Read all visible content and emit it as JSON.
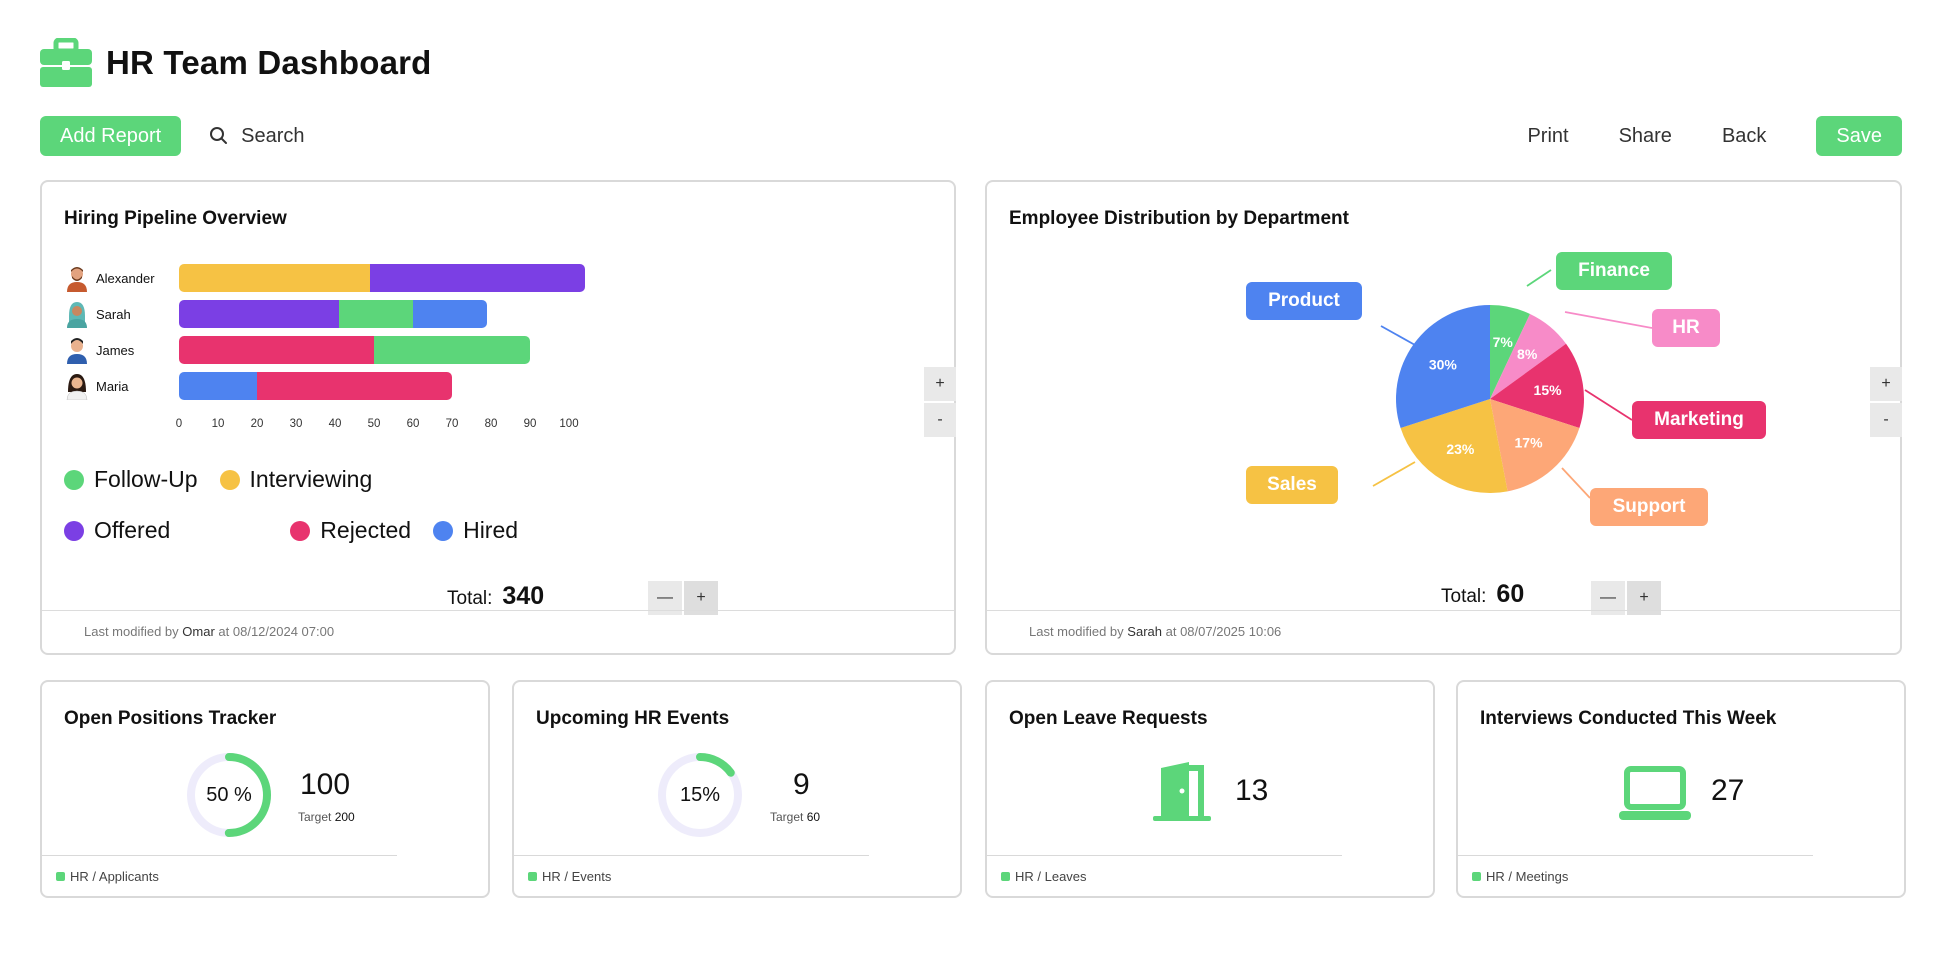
{
  "header": {
    "title": "HR Team Dashboard",
    "icon": "briefcase-icon"
  },
  "toolbar": {
    "add_report_label": "Add Report",
    "search_placeholder": "Search",
    "print_label": "Print",
    "share_label": "Share",
    "back_label": "Back",
    "save_label": "Save"
  },
  "colors": {
    "accent": "#5cd67a",
    "follow_up": "#5cd67a",
    "interviewing": "#f6c244",
    "offered": "#7b3fe4",
    "rejected": "#e8336e",
    "hired": "#4e83f0"
  },
  "hiring": {
    "title": "Hiring Pipeline Overview",
    "total_label": "Total:",
    "total_value": "340",
    "stepper_minus": "—",
    "stepper_plus": "+",
    "zoom_in": "+",
    "zoom_out": "-",
    "footer_prefix": "Last modified by",
    "footer_user": "Omar",
    "footer_at": "at 08/12/2024 07:00",
    "rows": [
      {
        "name": "Alexander",
        "segments": [
          {
            "status": "Interviewing",
            "value": 49
          },
          {
            "status": "Offered",
            "value": 55
          }
        ]
      },
      {
        "name": "Sarah",
        "segments": [
          {
            "status": "Offered",
            "value": 41
          },
          {
            "status": "Follow-Up",
            "value": 19
          },
          {
            "status": "Hired",
            "value": 19
          }
        ]
      },
      {
        "name": "James",
        "segments": [
          {
            "status": "Rejected",
            "value": 50
          },
          {
            "status": "Follow-Up",
            "value": 40
          }
        ]
      },
      {
        "name": "Maria",
        "segments": [
          {
            "status": "Hired",
            "value": 20
          },
          {
            "status": "Rejected",
            "value": 50
          }
        ]
      }
    ],
    "ticks": [
      "0",
      "10",
      "20",
      "30",
      "40",
      "50",
      "60",
      "70",
      "80",
      "90",
      "100"
    ],
    "legend": [
      "Follow-Up",
      "Interviewing",
      "Offered",
      "Rejected",
      "Hired"
    ]
  },
  "chart_data": [
    {
      "type": "bar",
      "orientation": "horizontal",
      "stacked": true,
      "title": "Hiring Pipeline Overview",
      "categories": [
        "Alexander",
        "Sarah",
        "James",
        "Maria"
      ],
      "series": [
        {
          "name": "Follow-Up",
          "values": [
            0,
            19,
            40,
            0
          ]
        },
        {
          "name": "Interviewing",
          "values": [
            49,
            0,
            0,
            0
          ]
        },
        {
          "name": "Offered",
          "values": [
            55,
            41,
            0,
            0
          ]
        },
        {
          "name": "Rejected",
          "values": [
            0,
            0,
            50,
            50
          ]
        },
        {
          "name": "Hired",
          "values": [
            0,
            19,
            0,
            20
          ]
        }
      ],
      "xlim": [
        0,
        100
      ],
      "legend": "bottom"
    },
    {
      "type": "pie",
      "title": "Employee Distribution by Department",
      "labels": [
        "Finance",
        "HR",
        "Marketing",
        "Support",
        "Sales",
        "Product"
      ],
      "values": [
        7,
        8,
        15,
        17,
        23,
        30
      ],
      "colors": [
        "#5cd67a",
        "#f78bc8",
        "#e8336e",
        "#fda777",
        "#f6c244",
        "#4e83f0"
      ]
    }
  ],
  "distribution": {
    "title": "Employee Distribution by Department",
    "total_label": "Total:",
    "total_value": "60",
    "stepper_minus": "—",
    "stepper_plus": "+",
    "zoom_in": "+",
    "zoom_out": "-",
    "footer_prefix": "Last modified by",
    "footer_user": "Sarah",
    "footer_at": "at 08/07/2025 10:06",
    "slices": [
      {
        "label": "Finance",
        "value": 7,
        "text": "7%",
        "color": "#5cd67a"
      },
      {
        "label": "HR",
        "value": 8,
        "text": "8%",
        "color": "#f78bc8"
      },
      {
        "label": "Marketing",
        "value": 15,
        "text": "15%",
        "color": "#e8336e"
      },
      {
        "label": "Support",
        "value": 17,
        "text": "17%",
        "color": "#fda777"
      },
      {
        "label": "Sales",
        "value": 23,
        "text": "23%",
        "color": "#f6c244"
      },
      {
        "label": "Product",
        "value": 30,
        "text": "30%",
        "color": "#4e83f0"
      }
    ]
  },
  "kpis": {
    "open_positions": {
      "title": "Open Positions Tracker",
      "percent_text": "50 %",
      "progress": 0.5,
      "value": "100",
      "target_label": "Target",
      "target_value": "200",
      "footer": "HR / Applicants"
    },
    "hr_events": {
      "title": "Upcoming HR Events",
      "percent_text": "15%",
      "progress": 0.15,
      "value": "9",
      "target_label": "Target",
      "target_value": "60",
      "footer": "HR / Events"
    },
    "leave_requests": {
      "title": "Open Leave Requests",
      "value": "13",
      "icon": "door-icon",
      "footer": "HR / Leaves"
    },
    "interviews": {
      "title": "Interviews Conducted This Week",
      "value": "27",
      "icon": "laptop-icon",
      "footer": "HR / Meetings"
    }
  }
}
